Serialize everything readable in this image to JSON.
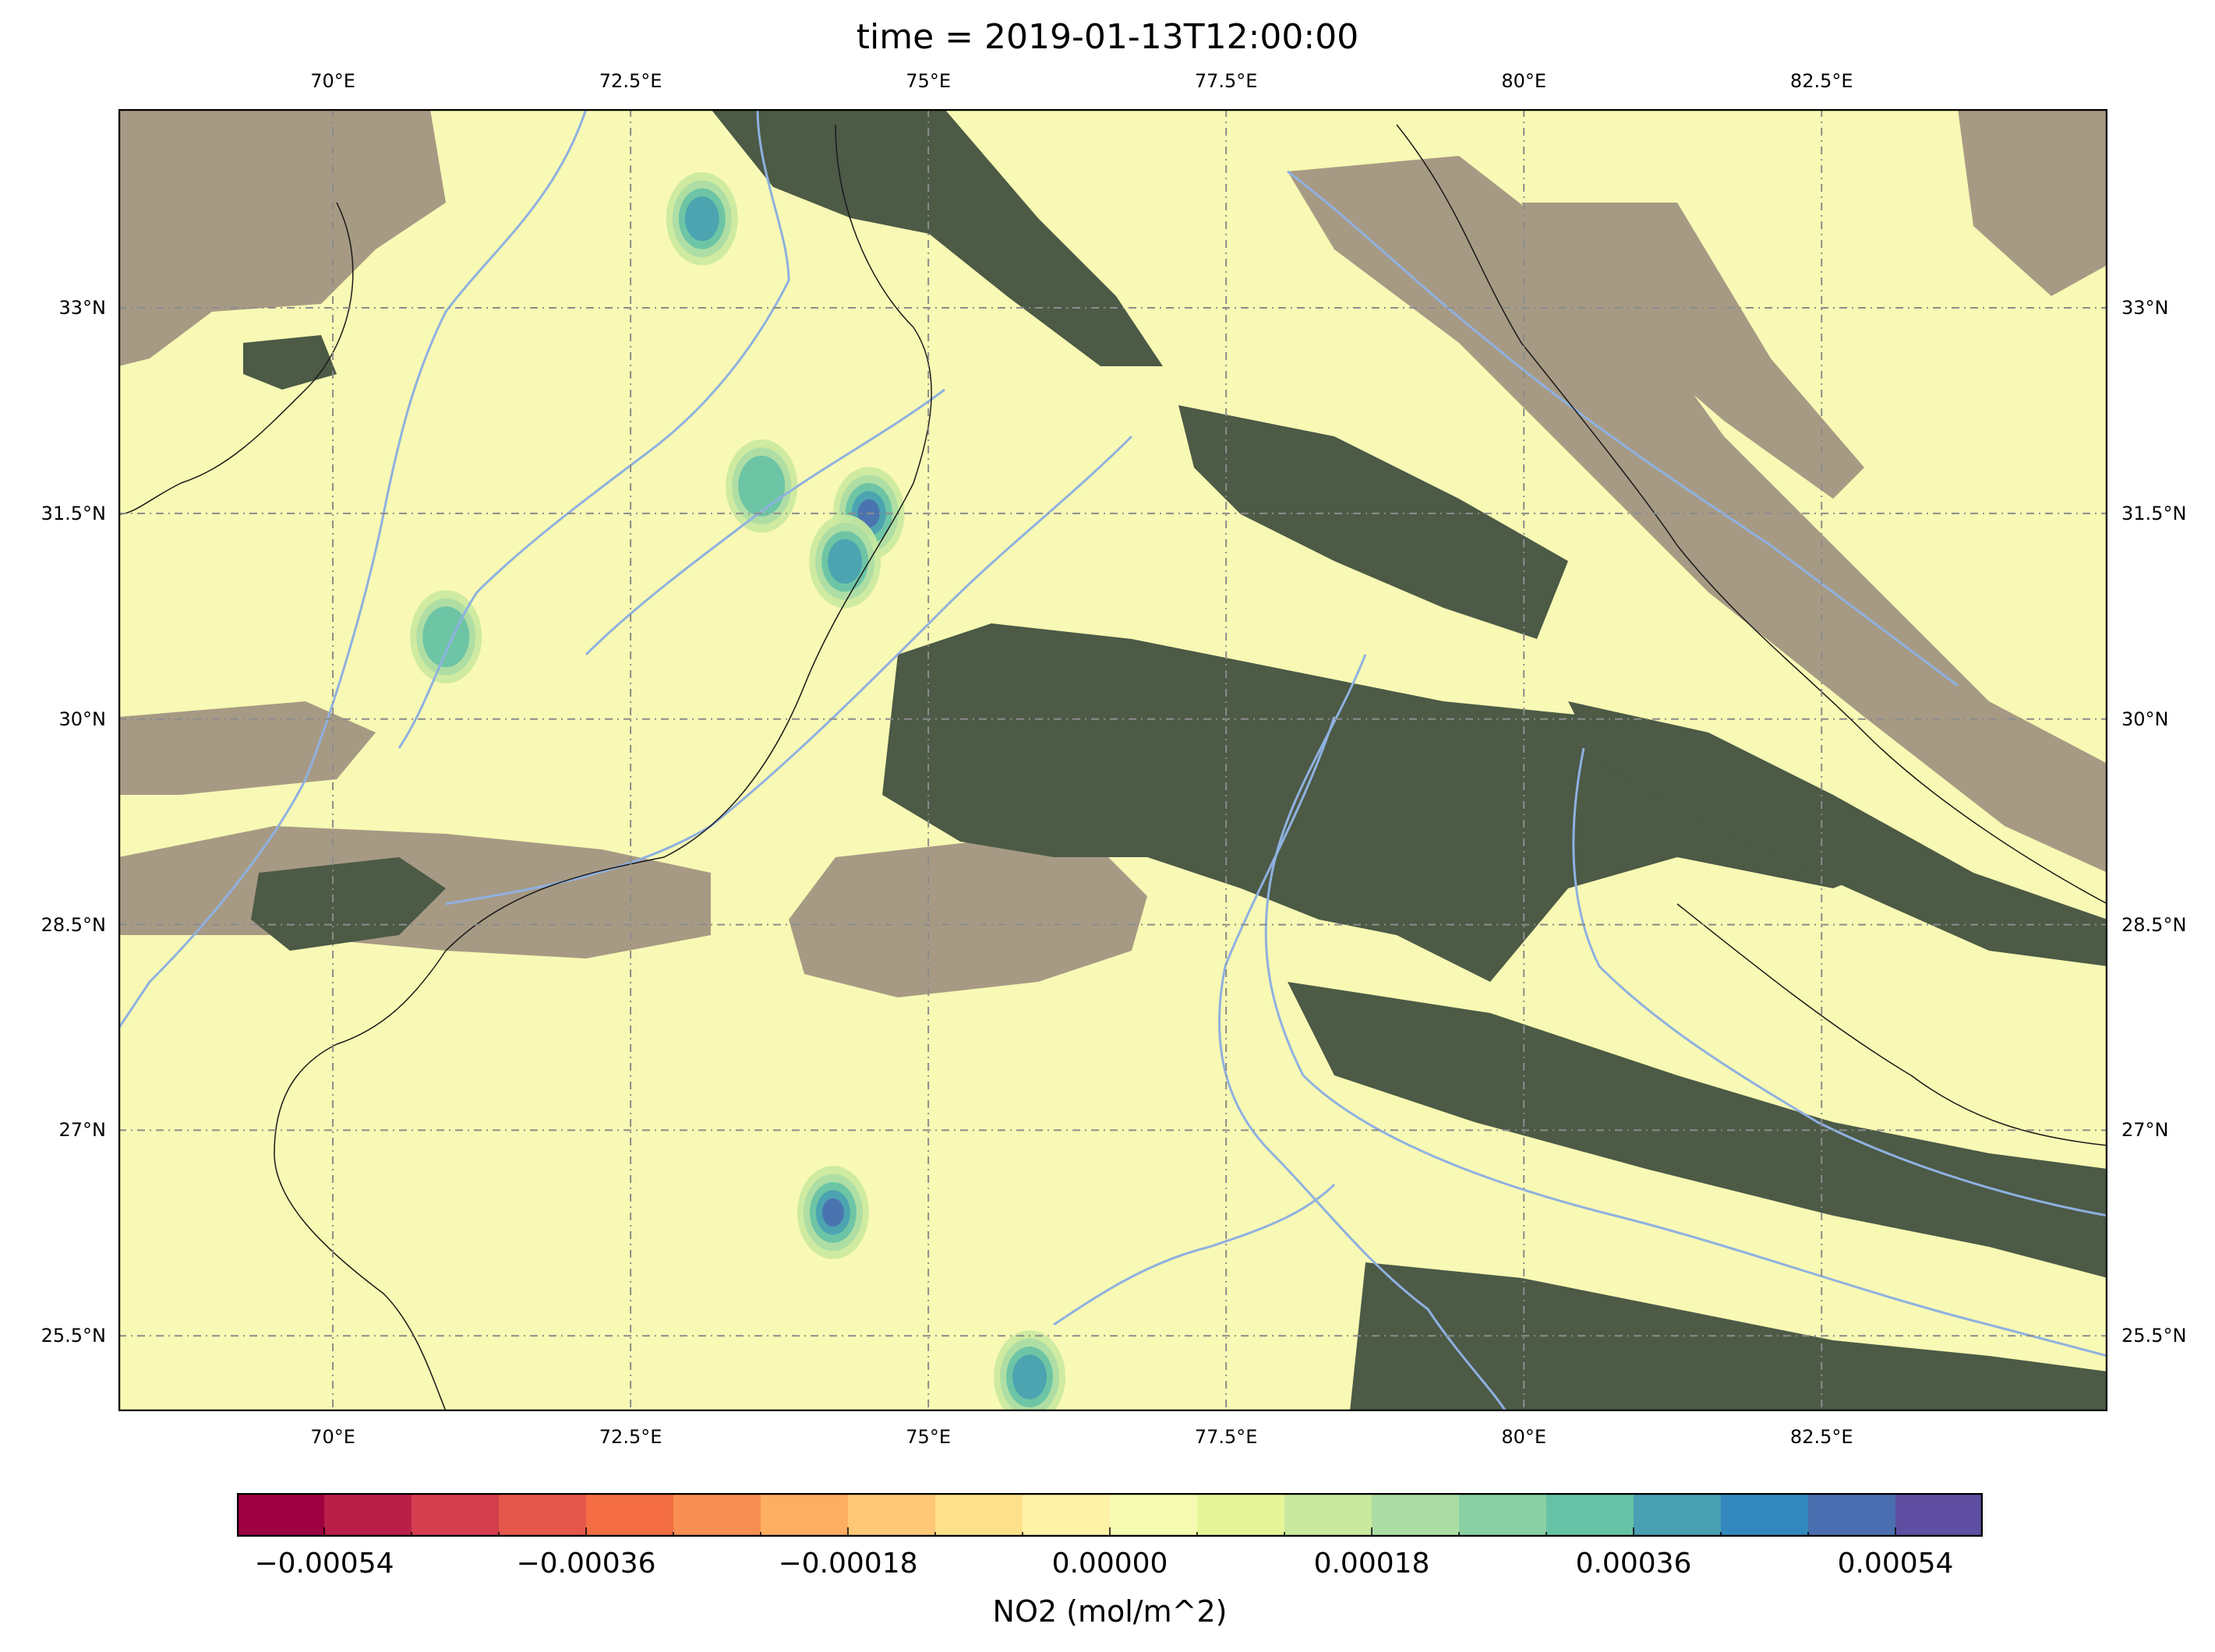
{
  "title": "time = 2019-01-13T12:00:00",
  "map": {
    "lon_ticks": [
      {
        "value": 70.0,
        "label": "70°E"
      },
      {
        "value": 72.5,
        "label": "72.5°E"
      },
      {
        "value": 75.0,
        "label": "75°E"
      },
      {
        "value": 77.5,
        "label": "77.5°E"
      },
      {
        "value": 80.0,
        "label": "80°E"
      },
      {
        "value": 82.5,
        "label": "82.5°E"
      }
    ],
    "lat_ticks": [
      {
        "value": 33.0,
        "label": "33°N"
      },
      {
        "value": 31.5,
        "label": "31.5°N"
      },
      {
        "value": 30.0,
        "label": "30°N"
      },
      {
        "value": 28.5,
        "label": "28.5°N"
      },
      {
        "value": 27.0,
        "label": "27°N"
      },
      {
        "value": 25.5,
        "label": "25.5°N"
      }
    ],
    "extent": {
      "lon_min": 68.2,
      "lon_max": 84.9,
      "lat_min": 24.95,
      "lat_max": 34.45
    },
    "colors": {
      "background_field": "#f8f9b4",
      "cloud_free_terrain": "#a79a84",
      "vegetation": "#4c5a46",
      "rivers": "#8fb1e0",
      "borders": "#1a1a1a",
      "gridlines": "#8c8c8c"
    },
    "no2_hotspots_deg": [
      {
        "lon": 73.1,
        "lat": 33.65,
        "level": 0.00044
      },
      {
        "lon": 74.5,
        "lat": 31.5,
        "level": 0.0005
      },
      {
        "lon": 74.3,
        "lat": 31.15,
        "level": 0.00036
      },
      {
        "lon": 73.6,
        "lat": 31.7,
        "level": 0.00027
      },
      {
        "lon": 70.95,
        "lat": 30.6,
        "level": 0.00027
      },
      {
        "lon": 74.2,
        "lat": 26.4,
        "level": 0.00045
      },
      {
        "lon": 75.85,
        "lat": 25.2,
        "level": 0.00036
      }
    ]
  },
  "colorbar": {
    "title": "NO2 (mol/m^2)",
    "range": [
      -0.0006,
      0.0006
    ],
    "colors": [
      "#9e0142",
      "#b91f48",
      "#d53e4f",
      "#e5574a",
      "#f46d43",
      "#f98e52",
      "#fdae61",
      "#fec877",
      "#fee08b",
      "#fef2a9",
      "#f5fbb1",
      "#e6f598",
      "#cae99e",
      "#abdda4",
      "#89d0a4",
      "#66c2a5",
      "#48a0b2",
      "#3288bd",
      "#4a6fb0",
      "#5e4fa2"
    ],
    "tick_labels": [
      {
        "value": -0.00054,
        "label": "−0.00054"
      },
      {
        "value": -0.00036,
        "label": "−0.00036"
      },
      {
        "value": -0.00018,
        "label": "−0.00018"
      },
      {
        "value": 0.0,
        "label": "0.00000"
      },
      {
        "value": 0.00018,
        "label": "0.00018"
      },
      {
        "value": 0.00036,
        "label": "0.00036"
      },
      {
        "value": 0.00054,
        "label": "0.00054"
      }
    ]
  }
}
